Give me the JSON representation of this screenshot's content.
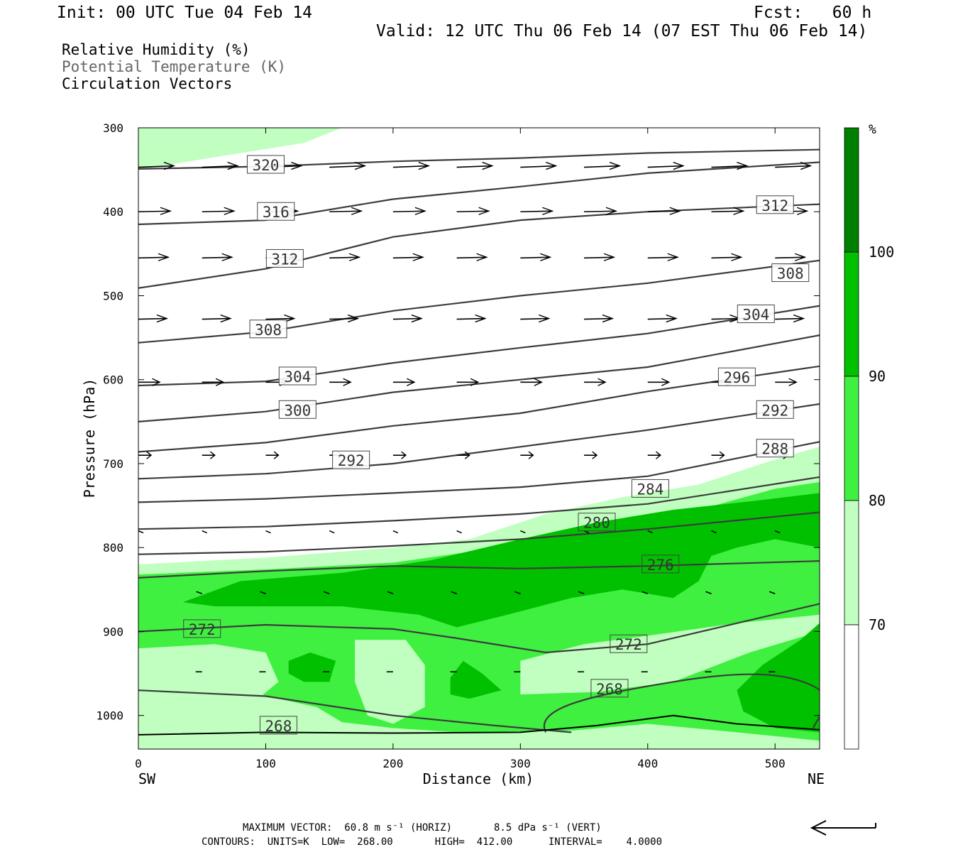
{
  "header": {
    "init": "Init: 00 UTC Tue 04 Feb 14",
    "fcst": "Fcst:   60 h",
    "valid": "Valid: 12 UTC Thu 06 Feb 14 (07 EST Thu 06 Feb 14)"
  },
  "legend": {
    "rh": "Relative Humidity (%)",
    "theta": "Potential Temperature (K)",
    "vectors": "Circulation Vectors"
  },
  "colors": {
    "rh_70_80": "#c0ffc0",
    "rh_80_90": "#40f040",
    "rh_90_100": "#00c000",
    "rh_100": "#008000",
    "contour": "#3c3c3c"
  },
  "chart_data": {
    "type": "heatmap",
    "description": "Cross-section: relative humidity shading, potential temperature contours, circulation vectors",
    "xlabel": "Distance (km)",
    "ylabel": "Pressure (hPa)",
    "xlim": [
      0,
      535
    ],
    "ylim": [
      1040,
      300
    ],
    "x_ticks": [
      0,
      100,
      200,
      300,
      400,
      500
    ],
    "y_ticks": [
      300,
      400,
      500,
      600,
      700,
      800,
      900,
      1000
    ],
    "endpoints": {
      "left": "SW",
      "right": "NE"
    },
    "colorbar": {
      "unit": "%",
      "levels": [
        70,
        80,
        90,
        100
      ]
    },
    "theta_contours": [
      {
        "value": 320,
        "label_at": [
          100,
          344
        ],
        "points": [
          [
            0,
            349
          ],
          [
            100,
            346
          ],
          [
            200,
            340
          ],
          [
            300,
            336
          ],
          [
            400,
            330
          ],
          [
            535,
            326
          ]
        ]
      },
      {
        "value": 316,
        "label_at": [
          108,
          400
        ],
        "points": [
          [
            0,
            415
          ],
          [
            100,
            410
          ],
          [
            200,
            385
          ],
          [
            300,
            370
          ],
          [
            400,
            354
          ],
          [
            535,
            341
          ]
        ]
      },
      {
        "value": 312,
        "label_at": [
          115,
          456
        ],
        "points": [
          [
            0,
            491
          ],
          [
            100,
            468
          ],
          [
            200,
            430
          ],
          [
            300,
            410
          ],
          [
            400,
            400
          ],
          [
            535,
            391
          ]
        ]
      },
      {
        "value": 312,
        "label_at": [
          500,
          392
        ],
        "points": []
      },
      {
        "value": 308,
        "label_at": [
          102,
          540
        ],
        "points": [
          [
            0,
            556
          ],
          [
            100,
            543
          ],
          [
            200,
            518
          ],
          [
            300,
            500
          ],
          [
            400,
            485
          ],
          [
            535,
            458
          ]
        ]
      },
      {
        "value": 308,
        "label_at": [
          512,
          473
        ],
        "points": []
      },
      {
        "value": 304,
        "label_at": [
          125,
          596
        ],
        "points": [
          [
            0,
            607
          ],
          [
            100,
            602
          ],
          [
            200,
            580
          ],
          [
            300,
            562
          ],
          [
            400,
            545
          ],
          [
            535,
            512
          ]
        ]
      },
      {
        "value": 304,
        "label_at": [
          485,
          522
        ],
        "points": []
      },
      {
        "value": 300,
        "label_at": [
          125,
          636
        ],
        "points": [
          [
            0,
            650
          ],
          [
            100,
            638
          ],
          [
            200,
            615
          ],
          [
            300,
            600
          ],
          [
            400,
            585
          ],
          [
            535,
            547
          ]
        ]
      },
      {
        "value": 296,
        "label_at": [
          470,
          597
        ],
        "points": [
          [
            0,
            686
          ],
          [
            100,
            675
          ],
          [
            200,
            655
          ],
          [
            300,
            640
          ],
          [
            400,
            614
          ],
          [
            535,
            584
          ]
        ]
      },
      {
        "value": 292,
        "label_at": [
          167,
          696
        ],
        "points": [
          [
            0,
            718
          ],
          [
            100,
            712
          ],
          [
            200,
            700
          ],
          [
            300,
            680
          ],
          [
            400,
            660
          ],
          [
            535,
            629
          ]
        ]
      },
      {
        "value": 292,
        "label_at": [
          500,
          636
        ],
        "points": []
      },
      {
        "value": 288,
        "label_at": [
          500,
          682
        ],
        "points": [
          [
            0,
            746
          ],
          [
            100,
            742
          ],
          [
            200,
            735
          ],
          [
            300,
            728
          ],
          [
            400,
            715
          ],
          [
            535,
            674
          ]
        ]
      },
      {
        "value": 284,
        "label_at": [
          402,
          730
        ],
        "points": [
          [
            0,
            778
          ],
          [
            100,
            775
          ],
          [
            200,
            768
          ],
          [
            300,
            760
          ],
          [
            400,
            748
          ],
          [
            535,
            716
          ]
        ]
      },
      {
        "value": 280,
        "label_at": [
          360,
          770
        ],
        "points": [
          [
            0,
            808
          ],
          [
            100,
            805
          ],
          [
            200,
            798
          ],
          [
            300,
            790
          ],
          [
            400,
            778
          ],
          [
            535,
            758
          ]
        ]
      },
      {
        "value": 276,
        "label_at": [
          410,
          820
        ],
        "points": [
          [
            0,
            836
          ],
          [
            100,
            828
          ],
          [
            200,
            822
          ],
          [
            300,
            825
          ],
          [
            400,
            822
          ],
          [
            535,
            816
          ]
        ]
      },
      {
        "value": 272,
        "label_at": [
          50,
          897
        ],
        "points": [
          [
            0,
            900
          ],
          [
            100,
            892
          ],
          [
            200,
            897
          ],
          [
            250,
            908
          ],
          [
            320,
            925
          ],
          [
            400,
            915
          ],
          [
            535,
            867
          ]
        ]
      },
      {
        "value": 272,
        "label_at": [
          385,
          915
        ],
        "points": []
      },
      {
        "value": 268,
        "label_at": [
          370,
          968
        ],
        "points": [
          [
            0,
            970
          ],
          [
            100,
            977
          ],
          [
            200,
            1000
          ],
          [
            280,
            1012
          ],
          [
            340,
            1020
          ]
        ]
      },
      {
        "value": 268,
        "label_at": [
          110,
          1012
        ],
        "points": []
      }
    ],
    "max_vector": "MAXIMUM VECTOR:  60.8 m s⁻¹ (HORIZ)       8.5 dPa s⁻¹ (VERT)",
    "contour_info": "CONTOURS:  UNITS=K  LOW=  268.00       HIGH=  412.00      INTERVAL=    4.0000"
  }
}
